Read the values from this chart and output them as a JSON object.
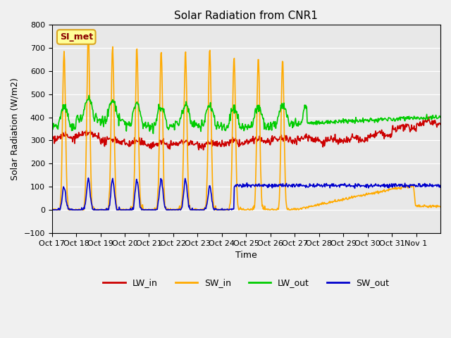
{
  "title": "Solar Radiation from CNR1",
  "xlabel": "Time",
  "ylabel": "Solar Radiation (W/m2)",
  "ylim": [
    -100,
    800
  ],
  "yticks": [
    -100,
    0,
    100,
    200,
    300,
    400,
    500,
    600,
    700,
    800
  ],
  "xtick_labels": [
    "Oct 17",
    "Oct 18",
    "Oct 19",
    "Oct 20",
    "Oct 21",
    "Oct 22",
    "Oct 23",
    "Oct 24",
    "Oct 25",
    "Oct 26",
    "Oct 27",
    "Oct 28",
    "Oct 29",
    "Oct 30",
    "Oct 31",
    "Nov 1"
  ],
  "annotation_text": "SI_met",
  "colors": {
    "LW_in": "#cc0000",
    "SW_in": "#ffaa00",
    "LW_out": "#00cc00",
    "SW_out": "#0000cc"
  },
  "bg_color": "#e8e8e8",
  "fig_color": "#f0f0f0",
  "linewidth": 1.2
}
